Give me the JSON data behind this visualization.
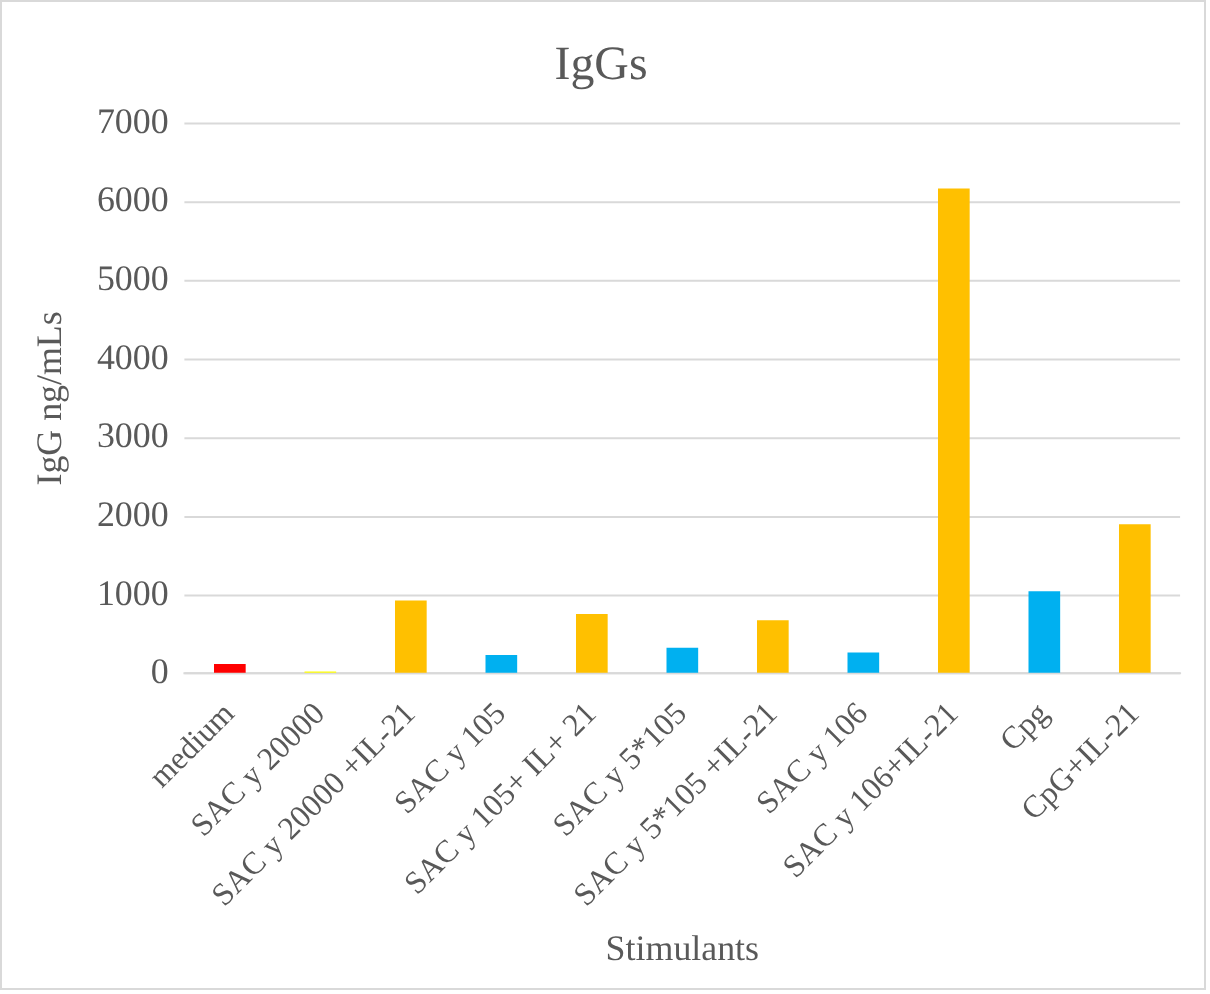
{
  "chart_data": {
    "type": "bar",
    "title": "IgGs",
    "xlabel": "Stimulants",
    "ylabel": "IgG ng/mLs",
    "categories": [
      "medium",
      "SAC y 20000",
      "SAC y 20000 +IL-21",
      "SAC y 105",
      "SAC y 105+ IL+ 21",
      "SAC y 5*105",
      "SAC y 5*105 +IL-21",
      "SAC y 106",
      "SAC y 106+IL-21",
      "Cpg",
      "CpG+IL-21"
    ],
    "values": [
      125,
      30,
      930,
      240,
      760,
      330,
      680,
      270,
      6170,
      1050,
      1900
    ],
    "colors": [
      "#ff0000",
      "#ffff00",
      "#ffc000",
      "#00b0f0",
      "#ffc000",
      "#00b0f0",
      "#ffc000",
      "#00b0f0",
      "#ffc000",
      "#00b0f0",
      "#ffc000"
    ],
    "ylim": [
      0,
      7000
    ],
    "yticks": [
      0,
      1000,
      2000,
      3000,
      4000,
      5000,
      6000,
      7000
    ],
    "grid": "y",
    "legend": false
  }
}
